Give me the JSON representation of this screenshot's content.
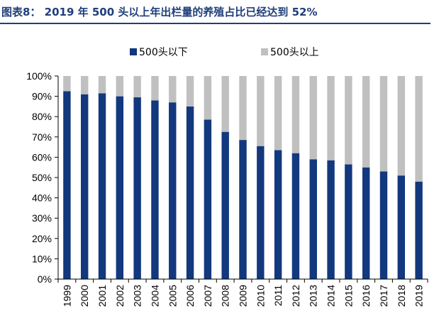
{
  "title": "图表8：  2019 年 500 头以上年出栏量的养殖占比已经达到 52%",
  "colors": {
    "title": "#1f3f7a",
    "series_below": "#12387e",
    "series_above": "#c0c0c0"
  },
  "chart_data": {
    "type": "bar",
    "stacked": true,
    "categories": [
      "1999",
      "2000",
      "2001",
      "2002",
      "2003",
      "2004",
      "2005",
      "2006",
      "2007",
      "2008",
      "2009",
      "2010",
      "2011",
      "2012",
      "2013",
      "2014",
      "2015",
      "2016",
      "2017",
      "2018",
      "2019"
    ],
    "series": [
      {
        "name": "500头以下",
        "values": [
          92.5,
          91,
          91.5,
          90,
          89.5,
          88,
          87,
          85,
          78.5,
          72.5,
          68.5,
          65.5,
          63.5,
          62,
          59,
          58.5,
          56.5,
          55,
          53,
          51,
          48
        ]
      },
      {
        "name": "500头以上",
        "values": [
          7.5,
          9,
          8.5,
          10,
          10.5,
          12,
          13,
          15,
          21.5,
          27.5,
          31.5,
          34.5,
          36.5,
          38,
          41,
          41.5,
          43.5,
          45,
          47,
          49,
          52
        ]
      }
    ],
    "yticks": [
      "0%",
      "10%",
      "20%",
      "30%",
      "40%",
      "50%",
      "60%",
      "70%",
      "80%",
      "90%",
      "100%"
    ],
    "ylim": [
      0,
      100
    ],
    "legend_position": "top",
    "grid": false
  }
}
